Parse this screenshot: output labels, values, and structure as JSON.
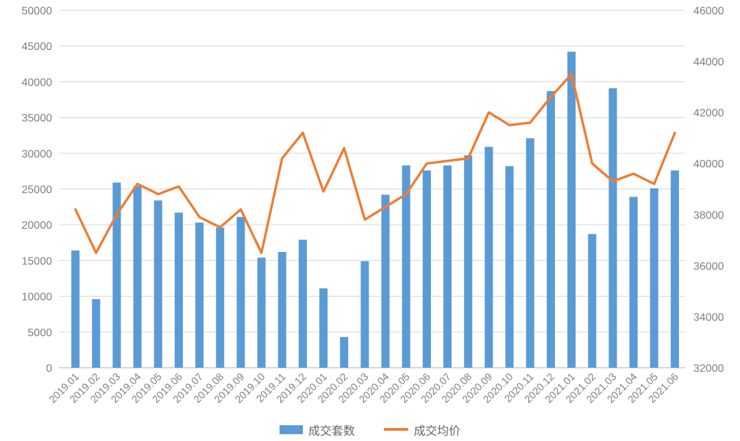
{
  "chart_data": {
    "type": "combo",
    "title": "",
    "categories": [
      "2019.01",
      "2019.02",
      "2019.03",
      "2019.04",
      "2019.05",
      "2019.06",
      "2019.07",
      "2019.08",
      "2019.09",
      "2019.10",
      "2019.11",
      "2019.12",
      "2020.01",
      "2020.02",
      "2020.03",
      "2020.04",
      "2020.05",
      "2020.06",
      "2020.07",
      "2020.08",
      "2020.09",
      "2020.10",
      "2020.11",
      "2020.12",
      "2021.01",
      "2021.02",
      "2021.03",
      "2021.04",
      "2021.05",
      "2021.06"
    ],
    "series": [
      {
        "name": "成交套数",
        "type": "bar",
        "axis": "left",
        "color": "#5B9BD5",
        "values": [
          16400,
          9600,
          25900,
          25400,
          23400,
          21700,
          20300,
          19600,
          21100,
          15400,
          16200,
          17900,
          11100,
          4300,
          14900,
          24200,
          28300,
          27600,
          28300,
          29700,
          30900,
          28200,
          32100,
          38700,
          44200,
          18700,
          39100,
          23900,
          25100,
          27600
        ]
      },
      {
        "name": "成交均价",
        "type": "line",
        "axis": "right",
        "color": "#ED7D31",
        "values": [
          38200,
          36500,
          38000,
          39200,
          38800,
          39100,
          37900,
          37500,
          38200,
          36500,
          40200,
          41200,
          38900,
          40600,
          37800,
          38300,
          38800,
          40000,
          40100,
          40200,
          42000,
          41500,
          41600,
          42600,
          43500,
          40000,
          39300,
          39600,
          39200,
          41200
        ]
      }
    ],
    "left_axis": {
      "min": 0,
      "max": 50000,
      "step": 5000,
      "ticks": [
        "0",
        "5000",
        "10000",
        "15000",
        "20000",
        "25000",
        "30000",
        "35000",
        "40000",
        "45000",
        "50000"
      ]
    },
    "right_axis": {
      "min": 32000,
      "max": 46000,
      "step": 2000,
      "ticks": [
        "32000",
        "34000",
        "36000",
        "38000",
        "40000",
        "42000",
        "44000",
        "46000"
      ]
    },
    "grid": true,
    "gridline_color": "#DCDCDC",
    "baseline_color": "#C8C8C8",
    "legend_position": "bottom",
    "legend": {
      "bar_label": "成交套数",
      "line_label": "成交均价"
    }
  }
}
